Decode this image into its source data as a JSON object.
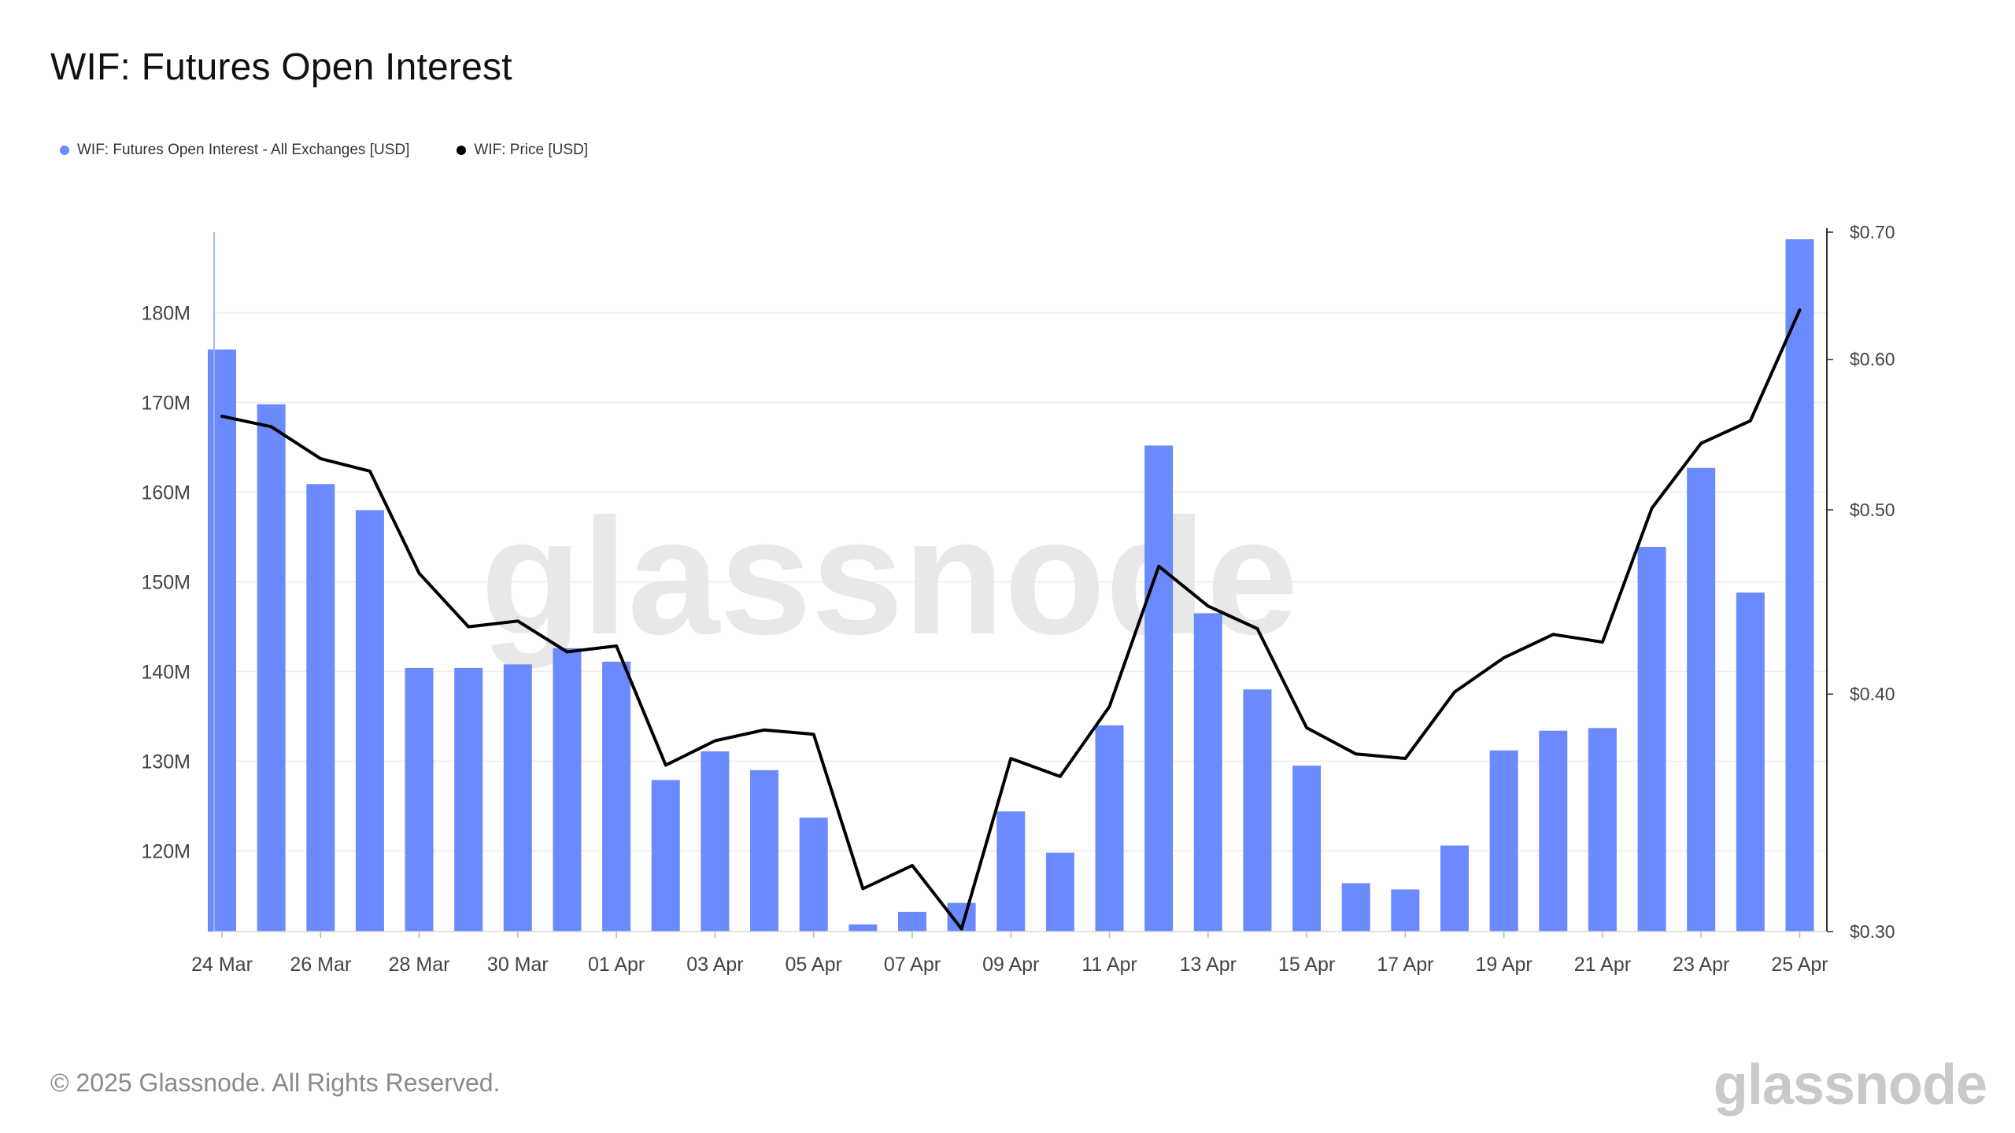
{
  "title": "WIF: Futures Open Interest",
  "legend": [
    {
      "label": "WIF: Futures Open Interest - All Exchanges [USD]",
      "color": "#6b8afd"
    },
    {
      "label": "WIF: Price [USD]",
      "color": "#000000"
    }
  ],
  "watermark": "glassnode",
  "footer": {
    "copyright": "© 2025 Glassnode. All Rights Reserved.",
    "logo": "glassnode"
  },
  "chart_data": {
    "type": "bar",
    "title": "WIF: Futures Open Interest",
    "categories": [
      "24 Mar",
      "25 Mar",
      "26 Mar",
      "27 Mar",
      "28 Mar",
      "29 Mar",
      "30 Mar",
      "31 Mar",
      "01 Apr",
      "02 Apr",
      "03 Apr",
      "04 Apr",
      "05 Apr",
      "06 Apr",
      "07 Apr",
      "08 Apr",
      "09 Apr",
      "10 Apr",
      "11 Apr",
      "12 Apr",
      "13 Apr",
      "14 Apr",
      "15 Apr",
      "16 Apr",
      "17 Apr",
      "18 Apr",
      "19 Apr",
      "20 Apr",
      "21 Apr",
      "22 Apr",
      "23 Apr",
      "24 Apr",
      "25 Apr"
    ],
    "x_tick_labels": [
      "24 Mar",
      "26 Mar",
      "28 Mar",
      "30 Mar",
      "01 Apr",
      "03 Apr",
      "05 Apr",
      "07 Apr",
      "09 Apr",
      "11 Apr",
      "13 Apr",
      "15 Apr",
      "17 Apr",
      "19 Apr",
      "21 Apr",
      "23 Apr",
      "25 Apr"
    ],
    "series": [
      {
        "name": "WIF: Futures Open Interest - All Exchanges [USD]",
        "type": "bar",
        "axis": "left",
        "color": "#6b8afd",
        "values": [
          175.9,
          169.8,
          160.9,
          158.0,
          140.4,
          140.4,
          140.8,
          142.6,
          141.1,
          127.9,
          131.1,
          129.0,
          123.7,
          111.8,
          113.2,
          114.2,
          124.4,
          119.8,
          134.0,
          165.2,
          146.5,
          138.0,
          129.5,
          116.4,
          115.7,
          120.6,
          131.2,
          133.4,
          133.7,
          153.9,
          162.7,
          148.8,
          188.2
        ]
      },
      {
        "name": "WIF: Price [USD]",
        "type": "line",
        "axis": "right",
        "color": "#000000",
        "values": [
          0.56,
          0.553,
          0.532,
          0.524,
          0.463,
          0.434,
          0.437,
          0.421,
          0.424,
          0.367,
          0.378,
          0.383,
          0.381,
          0.316,
          0.325,
          0.301,
          0.37,
          0.362,
          0.394,
          0.467,
          0.445,
          0.433,
          0.384,
          0.372,
          0.37,
          0.401,
          0.418,
          0.43,
          0.426,
          0.501,
          0.542,
          0.557,
          0.637
        ]
      }
    ],
    "y_left": {
      "ticks": [
        120,
        130,
        140,
        150,
        160,
        170,
        180
      ],
      "tick_labels": [
        "120M",
        "130M",
        "140M",
        "150M",
        "160M",
        "170M",
        "180M"
      ],
      "range": [
        111,
        189
      ]
    },
    "y_right": {
      "scale": "log",
      "ticks": [
        0.3,
        0.4,
        0.5,
        0.6,
        0.7
      ],
      "tick_labels": [
        "$0.30",
        "$0.40",
        "$0.50",
        "$0.60",
        "$0.70"
      ],
      "range": [
        0.3,
        0.7
      ]
    },
    "grid": "horizontal",
    "legend_position": "top-left"
  }
}
